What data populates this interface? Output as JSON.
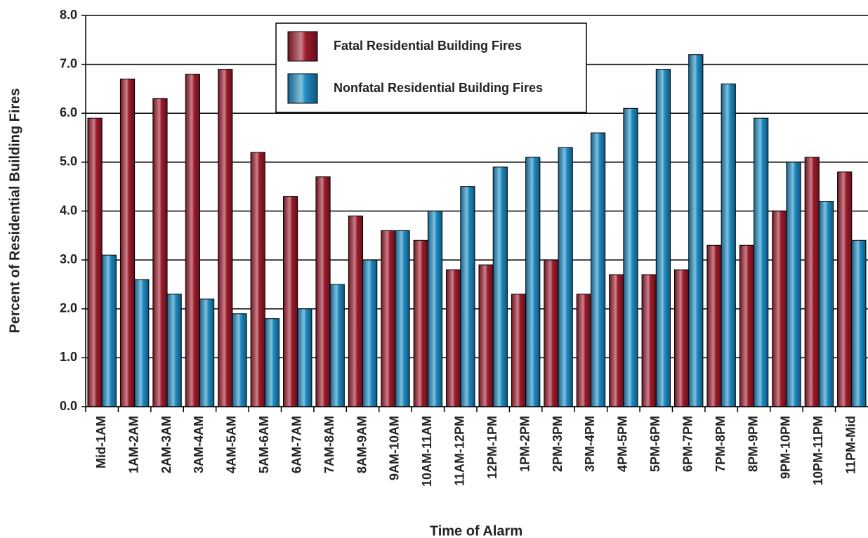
{
  "chart_data": {
    "type": "bar",
    "x_label": "Time of Alarm",
    "y_label": "Percent of Residential Building Fires",
    "categories": [
      "Mid-1AM",
      "1AM-2AM",
      "2AM-3AM",
      "3AM-4AM",
      "4AM-5AM",
      "5AM-6AM",
      "6AM-7AM",
      "7AM-8AM",
      "8AM-9AM",
      "9AM-10AM",
      "10AM-11AM",
      "11AM-12PM",
      "12PM-1PM",
      "1PM-2PM",
      "2PM-3PM",
      "3PM-4PM",
      "4PM-5PM",
      "5PM-6PM",
      "6PM-7PM",
      "7PM-8PM",
      "8PM-9PM",
      "9PM-10PM",
      "10PM-11PM",
      "11PM-Mid"
    ],
    "series": [
      {
        "name": "Fatal Residential Building Fires",
        "color": "#9e1c2c",
        "values": [
          5.9,
          6.7,
          6.3,
          6.8,
          6.9,
          5.2,
          4.3,
          4.7,
          3.9,
          3.6,
          3.4,
          2.8,
          2.9,
          2.3,
          3.0,
          2.3,
          2.7,
          2.7,
          2.8,
          3.3,
          3.3,
          4.0,
          5.1,
          4.8
        ]
      },
      {
        "name": "Nonfatal Residential Building Fires",
        "color": "#1e8cc4",
        "values": [
          3.1,
          2.6,
          2.3,
          2.2,
          1.9,
          1.8,
          2.0,
          2.5,
          3.0,
          3.6,
          4.0,
          4.5,
          4.9,
          5.1,
          5.3,
          5.6,
          6.1,
          6.9,
          7.2,
          6.6,
          5.9,
          5.0,
          4.2,
          3.4
        ]
      }
    ],
    "ylim": [
      0,
      8
    ],
    "yticks": [
      {
        "value": 0,
        "label": "0.0"
      },
      {
        "value": 1,
        "label": "1.0"
      },
      {
        "value": 2,
        "label": "2.0"
      },
      {
        "value": 3,
        "label": "3.0"
      },
      {
        "value": 4,
        "label": "4.0"
      },
      {
        "value": 5,
        "label": "5.0"
      },
      {
        "value": 6,
        "label": "6.0"
      },
      {
        "value": 7,
        "label": "7.0"
      },
      {
        "value": 8,
        "label": "8.0"
      }
    ],
    "grid": true,
    "legend": "top-center"
  }
}
